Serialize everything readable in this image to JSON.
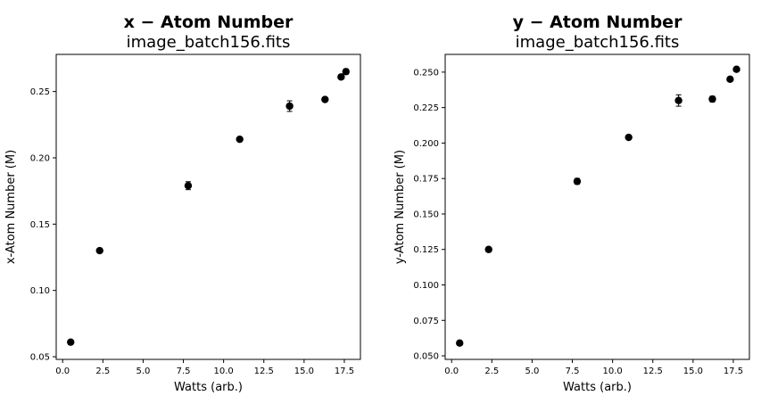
{
  "chart_data": [
    {
      "type": "scatter",
      "title": "x − Atom Number",
      "subtitle": "image_batch156.fits",
      "xlabel": "Watts (arb.)",
      "ylabel": "x-Atom Number (M)",
      "xlim": [
        -0.4,
        18.5
      ],
      "ylim": [
        0.048,
        0.278
      ],
      "xticks": [
        "0.0",
        "2.5",
        "5.0",
        "7.5",
        "10.0",
        "12.5",
        "15.0",
        "17.5"
      ],
      "yticks": [
        "0.05",
        "0.10",
        "0.15",
        "0.20",
        "0.25"
      ],
      "marker_color": "#000000",
      "points": [
        {
          "x": 0.5,
          "y": 0.061,
          "err": 0.001
        },
        {
          "x": 2.3,
          "y": 0.13,
          "err": 0.001
        },
        {
          "x": 7.8,
          "y": 0.179,
          "err": 0.003
        },
        {
          "x": 11.0,
          "y": 0.214,
          "err": 0.001
        },
        {
          "x": 14.1,
          "y": 0.239,
          "err": 0.004
        },
        {
          "x": 16.3,
          "y": 0.244,
          "err": 0.001
        },
        {
          "x": 17.3,
          "y": 0.261,
          "err": 0.001
        },
        {
          "x": 17.6,
          "y": 0.265,
          "err": 0.002
        }
      ]
    },
    {
      "type": "scatter",
      "title": "y − Atom Number",
      "subtitle": "image_batch156.fits",
      "xlabel": "Watts (arb.)",
      "ylabel": "y-Atom Number (M)",
      "xlim": [
        -0.4,
        18.5
      ],
      "ylim": [
        0.0475,
        0.2625
      ],
      "xticks": [
        "0.0",
        "2.5",
        "5.0",
        "7.5",
        "10.0",
        "12.5",
        "15.0",
        "17.5"
      ],
      "yticks": [
        "0.050",
        "0.075",
        "0.100",
        "0.125",
        "0.150",
        "0.175",
        "0.200",
        "0.225",
        "0.250"
      ],
      "marker_color": "#000000",
      "points": [
        {
          "x": 0.5,
          "y": 0.059,
          "err": 0.001
        },
        {
          "x": 2.3,
          "y": 0.125,
          "err": 0.001
        },
        {
          "x": 7.8,
          "y": 0.173,
          "err": 0.002
        },
        {
          "x": 11.0,
          "y": 0.204,
          "err": 0.001
        },
        {
          "x": 14.1,
          "y": 0.23,
          "err": 0.004
        },
        {
          "x": 16.2,
          "y": 0.231,
          "err": 0.002
        },
        {
          "x": 17.3,
          "y": 0.245,
          "err": 0.001
        },
        {
          "x": 17.7,
          "y": 0.252,
          "err": 0.001
        }
      ]
    }
  ]
}
